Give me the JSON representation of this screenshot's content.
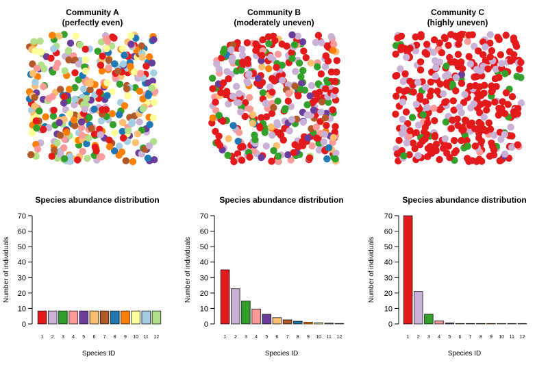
{
  "palette": [
    "#E31A1C",
    "#CAB2D6",
    "#33A02C",
    "#FB9A99",
    "#6A3D9A",
    "#FDBF6F",
    "#B15928",
    "#1F78B4",
    "#FF7F00",
    "#FFFF99",
    "#A6CEE3",
    "#B2DF8A"
  ],
  "chart_data": [
    {
      "type": "scatter",
      "title_line1": "Community A",
      "title_line2": "(perfectly even)",
      "n_points": 400,
      "species_proportions": [
        8.33,
        8.33,
        8.33,
        8.33,
        8.33,
        8.33,
        8.33,
        8.33,
        8.33,
        8.33,
        8.33,
        8.33
      ],
      "axes": "none"
    },
    {
      "type": "scatter",
      "title_line1": "Community B",
      "title_line2": "(moderately uneven)",
      "n_points": 400,
      "species_proportions": [
        35,
        22.75,
        14.79,
        9.61,
        6.25,
        4.06,
        2.64,
        1.72,
        1.11,
        0.72,
        0.47,
        0.31
      ],
      "axes": "none"
    },
    {
      "type": "scatter",
      "title_line1": "Community C",
      "title_line2": "(highly uneven)",
      "n_points": 400,
      "species_proportions": [
        70,
        21,
        6.3,
        1.89,
        0.57,
        0.17,
        0.05,
        0.02,
        0.0,
        0.0,
        0.0,
        0.0
      ],
      "axes": "none"
    },
    {
      "type": "bar",
      "title": "Species abundance distribution",
      "xlabel": "Species ID",
      "ylabel": "Number of individuals",
      "categories": [
        "1",
        "2",
        "3",
        "4",
        "5",
        "6",
        "7",
        "8",
        "9",
        "10",
        "11",
        "12"
      ],
      "values": [
        8.33,
        8.33,
        8.33,
        8.33,
        8.33,
        8.33,
        8.33,
        8.33,
        8.33,
        8.33,
        8.33,
        8.33
      ],
      "ylim": [
        0,
        70
      ],
      "yticks": [
        "0",
        "10",
        "20",
        "30",
        "40",
        "50",
        "60",
        "70"
      ],
      "grid": false
    },
    {
      "type": "bar",
      "title": "Species abundance distribution",
      "xlabel": "Species ID",
      "ylabel": "Number of individuals",
      "categories": [
        "1",
        "2",
        "3",
        "4",
        "5",
        "6",
        "7",
        "8",
        "9",
        "10",
        "11",
        "12"
      ],
      "values": [
        35,
        22.75,
        14.79,
        9.61,
        6.25,
        4.06,
        2.64,
        1.72,
        1.11,
        0.72,
        0.47,
        0.31
      ],
      "ylim": [
        0,
        70
      ],
      "yticks": [
        "0",
        "10",
        "20",
        "30",
        "40",
        "50",
        "60",
        "70"
      ],
      "grid": false
    },
    {
      "type": "bar",
      "title": "Species abundance distribution",
      "xlabel": "Species ID",
      "ylabel": "Number of individuals",
      "categories": [
        "1",
        "2",
        "3",
        "4",
        "5",
        "6",
        "7",
        "8",
        "9",
        "10",
        "11",
        "12"
      ],
      "values": [
        70,
        21,
        6.3,
        1.89,
        0.57,
        0.17,
        0.05,
        0.02,
        0.0,
        0.0,
        0.0,
        0.0
      ],
      "ylim": [
        0,
        70
      ],
      "yticks": [
        "0",
        "10",
        "20",
        "30",
        "40",
        "50",
        "60",
        "70"
      ],
      "grid": false
    }
  ]
}
